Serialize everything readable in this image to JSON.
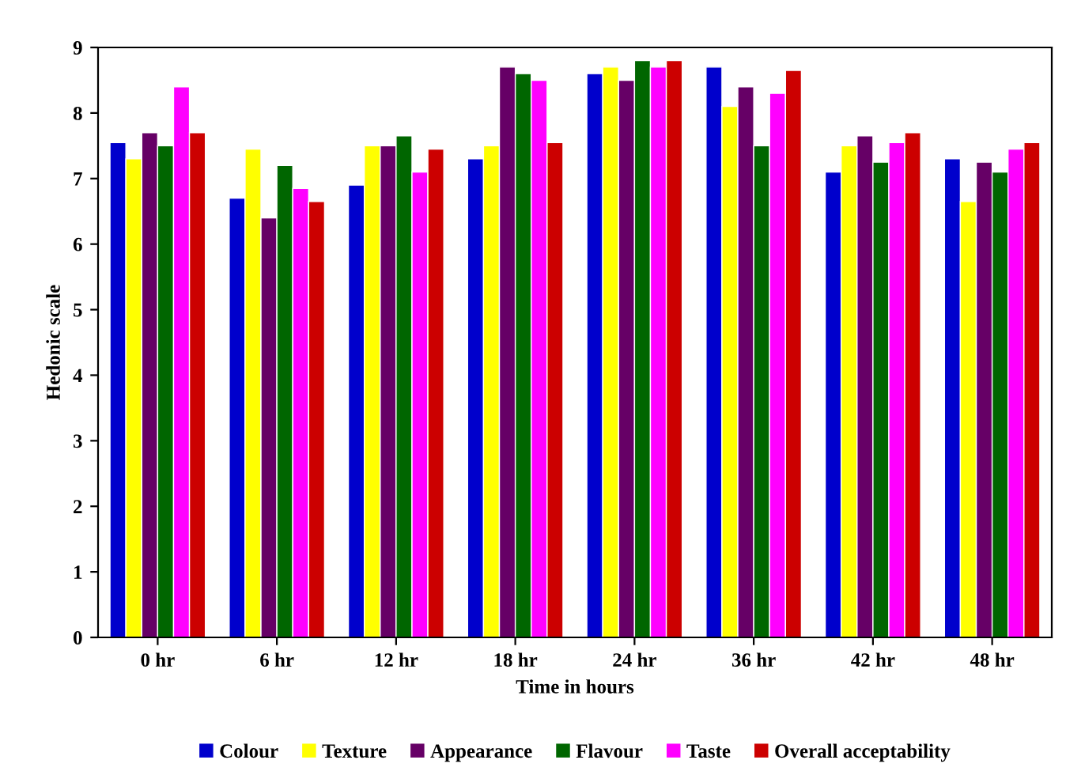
{
  "chart_data": {
    "type": "bar",
    "xlabel": "Time in hours",
    "ylabel": "Hedonic scale",
    "categories": [
      "0 hr",
      "6 hr",
      "12 hr",
      "18 hr",
      "24 hr",
      "36 hr",
      "42 hr",
      "48 hr"
    ],
    "ylim": [
      0,
      9
    ],
    "yticks": [
      0,
      1,
      2,
      3,
      4,
      5,
      6,
      7,
      8,
      9
    ],
    "grid": false,
    "legend": "bottom",
    "series": [
      {
        "name": "Colour",
        "color": "#0000cc",
        "values": [
          7.55,
          6.7,
          6.9,
          7.3,
          8.6,
          8.7,
          7.1,
          7.3
        ]
      },
      {
        "name": "Texture",
        "color": "#ffff00",
        "values": [
          7.3,
          7.45,
          7.5,
          7.5,
          8.7,
          8.1,
          7.5,
          6.65
        ]
      },
      {
        "name": "Appearance",
        "color": "#660066",
        "values": [
          7.7,
          6.4,
          7.5,
          8.7,
          8.5,
          8.4,
          7.65,
          7.25
        ]
      },
      {
        "name": "Flavour",
        "color": "#006600",
        "values": [
          7.5,
          7.2,
          7.65,
          8.6,
          8.8,
          7.5,
          7.25,
          7.1
        ]
      },
      {
        "name": "Taste",
        "color": "#ff00ff",
        "values": [
          8.4,
          6.85,
          7.1,
          8.5,
          8.7,
          8.3,
          7.55,
          7.45
        ]
      },
      {
        "name": "Overall acceptability",
        "color": "#cc0000",
        "values": [
          7.7,
          6.65,
          7.45,
          7.55,
          8.8,
          8.65,
          7.7,
          7.55
        ]
      }
    ]
  }
}
